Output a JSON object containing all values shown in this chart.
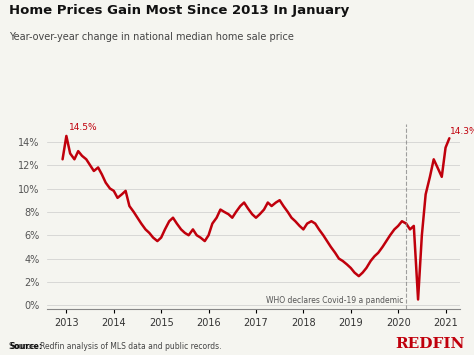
{
  "title": "Home Prices Gain Most Since 2013 In January",
  "subtitle": "Year-over-year change in national median home sale price",
  "source": "Source: Redfin analysis of MLS data and public records.",
  "line_color": "#C0000C",
  "background_color": "#f5f5f0",
  "vline_x": 2020.17,
  "vline_label": "WHO declares Covid-19 a pandemic",
  "annotation_early": "14.5%",
  "annotation_late": "14.3%",
  "ylim": [
    -0.3,
    15.5
  ],
  "yticks": [
    0,
    2,
    4,
    6,
    8,
    10,
    12,
    14
  ],
  "xlim": [
    2012.6,
    2021.3
  ],
  "data": {
    "dates": [
      2012.92,
      2013.0,
      2013.08,
      2013.17,
      2013.25,
      2013.33,
      2013.42,
      2013.5,
      2013.58,
      2013.67,
      2013.75,
      2013.83,
      2013.92,
      2014.0,
      2014.08,
      2014.17,
      2014.25,
      2014.33,
      2014.42,
      2014.5,
      2014.58,
      2014.67,
      2014.75,
      2014.83,
      2014.92,
      2015.0,
      2015.08,
      2015.17,
      2015.25,
      2015.33,
      2015.42,
      2015.5,
      2015.58,
      2015.67,
      2015.75,
      2015.83,
      2015.92,
      2016.0,
      2016.08,
      2016.17,
      2016.25,
      2016.33,
      2016.42,
      2016.5,
      2016.58,
      2016.67,
      2016.75,
      2016.83,
      2016.92,
      2017.0,
      2017.08,
      2017.17,
      2017.25,
      2017.33,
      2017.42,
      2017.5,
      2017.58,
      2017.67,
      2017.75,
      2017.83,
      2017.92,
      2018.0,
      2018.08,
      2018.17,
      2018.25,
      2018.33,
      2018.42,
      2018.5,
      2018.58,
      2018.67,
      2018.75,
      2018.83,
      2018.92,
      2019.0,
      2019.08,
      2019.17,
      2019.25,
      2019.33,
      2019.42,
      2019.5,
      2019.58,
      2019.67,
      2019.75,
      2019.83,
      2019.92,
      2020.0,
      2020.08,
      2020.17,
      2020.25,
      2020.33,
      2020.42,
      2020.5,
      2020.58,
      2020.67,
      2020.75,
      2020.83,
      2020.92,
      2021.0,
      2021.08
    ],
    "values": [
      12.5,
      14.5,
      13.0,
      12.5,
      13.2,
      12.8,
      12.5,
      12.0,
      11.5,
      11.8,
      11.2,
      10.5,
      10.0,
      9.8,
      9.2,
      9.5,
      9.8,
      8.5,
      8.0,
      7.5,
      7.0,
      6.5,
      6.2,
      5.8,
      5.5,
      5.8,
      6.5,
      7.2,
      7.5,
      7.0,
      6.5,
      6.2,
      6.0,
      6.5,
      6.0,
      5.8,
      5.5,
      6.0,
      7.0,
      7.5,
      8.2,
      8.0,
      7.8,
      7.5,
      8.0,
      8.5,
      8.8,
      8.3,
      7.8,
      7.5,
      7.8,
      8.2,
      8.8,
      8.5,
      8.8,
      9.0,
      8.5,
      8.0,
      7.5,
      7.2,
      6.8,
      6.5,
      7.0,
      7.2,
      7.0,
      6.5,
      6.0,
      5.5,
      5.0,
      4.5,
      4.0,
      3.8,
      3.5,
      3.2,
      2.8,
      2.5,
      2.8,
      3.2,
      3.8,
      4.2,
      4.5,
      5.0,
      5.5,
      6.0,
      6.5,
      6.8,
      7.2,
      7.0,
      6.5,
      6.8,
      0.5,
      6.0,
      9.5,
      11.0,
      12.5,
      11.8,
      11.0,
      13.5,
      14.3
    ]
  }
}
